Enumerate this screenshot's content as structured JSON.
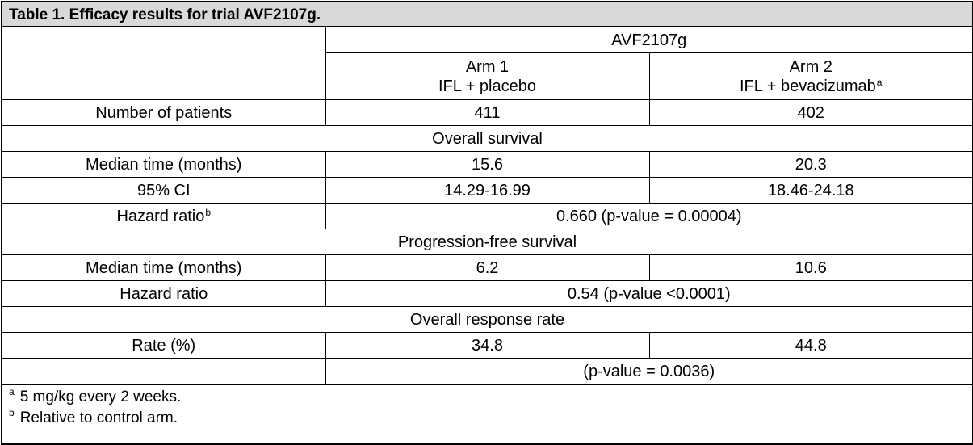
{
  "caption": "Table 1. Efficacy results for trial AVF2107g.",
  "header": {
    "study": "AVF2107g",
    "arm1_line1": "Arm 1",
    "arm1_line2": "IFL + placebo",
    "arm2_line1": "Arm 2",
    "arm2_line2": "IFL + bevacizumab",
    "arm2_sup": "a"
  },
  "patients": {
    "label": "Number of patients",
    "arm1": "411",
    "arm2": "402"
  },
  "os": {
    "section": "Overall survival",
    "median_label": "Median time (months)",
    "median_arm1": "15.6",
    "median_arm2": "20.3",
    "ci_label": "95% CI",
    "ci_arm1": "14.29-16.99",
    "ci_arm2": "18.46-24.18",
    "hr_label": "Hazard ratio",
    "hr_sup": "b",
    "hr_value": "0.660 (p-value = 0.00004)"
  },
  "pfs": {
    "section": "Progression-free survival",
    "median_label": "Median time (months)",
    "median_arm1": "6.2",
    "median_arm2": "10.6",
    "hr_label": "Hazard ratio",
    "hr_value": "0.54 (p-value <0.0001)"
  },
  "orr": {
    "section": "Overall response rate",
    "rate_label": "Rate (%)",
    "rate_arm1": "34.8",
    "rate_arm2": "44.8",
    "p_value": "(p-value = 0.0036)"
  },
  "footnotes": [
    {
      "mark": "a",
      "text": "5 mg/kg every 2 weeks."
    },
    {
      "mark": "b",
      "text": "Relative to control arm."
    }
  ]
}
